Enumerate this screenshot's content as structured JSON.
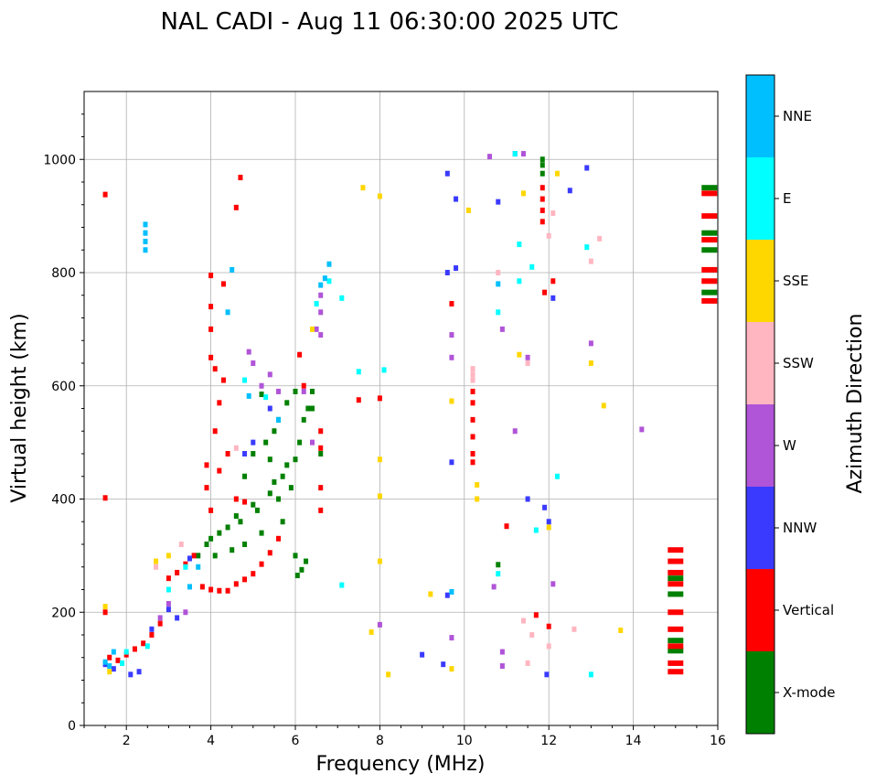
{
  "chart_data": {
    "type": "scatter",
    "title": "NAL CADI - Aug 11 06:30:00 2025 UTC",
    "xlabel": "Frequency (MHz)",
    "ylabel": "Virtual height (km)",
    "xlim": [
      1,
      16
    ],
    "ylim": [
      0,
      1120
    ],
    "xticks": [
      2,
      4,
      6,
      8,
      10,
      12,
      14,
      16
    ],
    "yticks": [
      0,
      200,
      400,
      600,
      800,
      1000
    ],
    "grid": true,
    "colorbar": {
      "label": "Azimuth Direction",
      "entries": [
        {
          "name": "X-mode",
          "color": "#008000"
        },
        {
          "name": "Vertical",
          "color": "#ff0000"
        },
        {
          "name": "NNW",
          "color": "#3a3aff"
        },
        {
          "name": "W",
          "color": "#b054d8"
        },
        {
          "name": "SSW",
          "color": "#ffb6c1"
        },
        {
          "name": "SSE",
          "color": "#ffd700"
        },
        {
          "name": "E",
          "color": "#00ffff"
        },
        {
          "name": "NNE",
          "color": "#00bfff"
        }
      ]
    },
    "series": [
      {
        "name": "X-mode",
        "points": [
          [
            3.7,
            300
          ],
          [
            3.9,
            320
          ],
          [
            4.0,
            330
          ],
          [
            4.1,
            300
          ],
          [
            4.2,
            340
          ],
          [
            4.4,
            350
          ],
          [
            4.5,
            310
          ],
          [
            4.6,
            370
          ],
          [
            4.7,
            360
          ],
          [
            4.8,
            320
          ],
          [
            5.0,
            390
          ],
          [
            5.1,
            380
          ],
          [
            5.2,
            340
          ],
          [
            5.4,
            410
          ],
          [
            5.5,
            430
          ],
          [
            5.6,
            400
          ],
          [
            5.7,
            440
          ],
          [
            5.8,
            460
          ],
          [
            5.9,
            420
          ],
          [
            6.0,
            470
          ],
          [
            6.1,
            500
          ],
          [
            6.2,
            540
          ],
          [
            6.3,
            560
          ],
          [
            5.3,
            500
          ],
          [
            5.5,
            520
          ],
          [
            5.6,
            540
          ],
          [
            5.8,
            570
          ],
          [
            6.0,
            590
          ],
          [
            5.2,
            585
          ],
          [
            5.4,
            470
          ],
          [
            6.05,
            265
          ],
          [
            6.15,
            275
          ],
          [
            6.25,
            290
          ],
          [
            6.0,
            300
          ],
          [
            6.4,
            560
          ],
          [
            6.4,
            590
          ],
          [
            6.6,
            480
          ],
          [
            5.0,
            480
          ],
          [
            4.8,
            440
          ],
          [
            5.7,
            360
          ],
          [
            11.85,
            1000
          ],
          [
            11.85,
            990
          ],
          [
            11.85,
            975
          ],
          [
            15.0,
            260
          ],
          [
            15.0,
            232
          ],
          [
            15.0,
            150
          ],
          [
            15.0,
            132
          ],
          [
            15.8,
            950
          ],
          [
            15.8,
            870
          ],
          [
            15.8,
            765
          ],
          [
            15.8,
            840
          ],
          [
            10.8,
            284
          ]
        ]
      },
      {
        "name": "Vertical",
        "points": [
          [
            1.5,
            200
          ],
          [
            1.5,
            402
          ],
          [
            1.5,
            938
          ],
          [
            1.6,
            120
          ],
          [
            1.8,
            115
          ],
          [
            2.0,
            125
          ],
          [
            2.2,
            135
          ],
          [
            2.4,
            145
          ],
          [
            2.6,
            160
          ],
          [
            2.8,
            180
          ],
          [
            3.0,
            260
          ],
          [
            3.2,
            270
          ],
          [
            3.4,
            285
          ],
          [
            3.6,
            300
          ],
          [
            3.8,
            245
          ],
          [
            4.0,
            240
          ],
          [
            4.2,
            238
          ],
          [
            4.4,
            238
          ],
          [
            4.6,
            250
          ],
          [
            4.8,
            258
          ],
          [
            5.0,
            268
          ],
          [
            5.2,
            285
          ],
          [
            5.4,
            305
          ],
          [
            5.6,
            330
          ],
          [
            3.9,
            420
          ],
          [
            3.9,
            460
          ],
          [
            4.1,
            520
          ],
          [
            4.2,
            570
          ],
          [
            4.3,
            610
          ],
          [
            4.0,
            650
          ],
          [
            4.0,
            700
          ],
          [
            4.0,
            740
          ],
          [
            4.0,
            795
          ],
          [
            4.3,
            780
          ],
          [
            4.1,
            630
          ],
          [
            4.2,
            450
          ],
          [
            4.4,
            480
          ],
          [
            4.6,
            400
          ],
          [
            4.8,
            395
          ],
          [
            4.0,
            380
          ],
          [
            6.6,
            380
          ],
          [
            6.6,
            420
          ],
          [
            6.6,
            490
          ],
          [
            6.6,
            520
          ],
          [
            6.2,
            600
          ],
          [
            6.1,
            655
          ],
          [
            7.5,
            575
          ],
          [
            8.0,
            578
          ],
          [
            10.2,
            465
          ],
          [
            10.2,
            480
          ],
          [
            10.2,
            510
          ],
          [
            10.2,
            540
          ],
          [
            10.2,
            570
          ],
          [
            10.2,
            590
          ],
          [
            11.85,
            950
          ],
          [
            11.85,
            930
          ],
          [
            11.85,
            910
          ],
          [
            11.85,
            890
          ],
          [
            12.1,
            785
          ],
          [
            11.9,
            765
          ],
          [
            12.0,
            175
          ],
          [
            11.7,
            195
          ],
          [
            11.0,
            352
          ],
          [
            15.0,
            310
          ],
          [
            15.0,
            290
          ],
          [
            15.0,
            270
          ],
          [
            15.0,
            250
          ],
          [
            15.0,
            200
          ],
          [
            15.0,
            170
          ],
          [
            15.0,
            140
          ],
          [
            15.0,
            110
          ],
          [
            15.0,
            95
          ],
          [
            15.8,
            940
          ],
          [
            15.8,
            900
          ],
          [
            15.8,
            858
          ],
          [
            15.8,
            805
          ],
          [
            15.8,
            785
          ],
          [
            15.8,
            750
          ],
          [
            4.6,
            915
          ],
          [
            4.7,
            968
          ],
          [
            9.7,
            745
          ]
        ]
      },
      {
        "name": "NNW",
        "points": [
          [
            1.5,
            108
          ],
          [
            1.7,
            100
          ],
          [
            2.1,
            90
          ],
          [
            2.3,
            95
          ],
          [
            2.6,
            170
          ],
          [
            3.0,
            205
          ],
          [
            3.2,
            190
          ],
          [
            3.5,
            295
          ],
          [
            4.8,
            480
          ],
          [
            5.0,
            500
          ],
          [
            5.4,
            560
          ],
          [
            9.7,
            465
          ],
          [
            9.6,
            230
          ],
          [
            9.0,
            125
          ],
          [
            9.5,
            108
          ],
          [
            9.6,
            975
          ],
          [
            9.8,
            930
          ],
          [
            9.6,
            800
          ],
          [
            9.8,
            808
          ],
          [
            10.8,
            925
          ],
          [
            11.2,
            1010
          ],
          [
            11.5,
            400
          ],
          [
            11.9,
            385
          ],
          [
            12.0,
            360
          ],
          [
            12.1,
            755
          ],
          [
            12.5,
            945
          ],
          [
            12.9,
            985
          ],
          [
            11.95,
            90
          ]
        ]
      },
      {
        "name": "W",
        "points": [
          [
            2.8,
            190
          ],
          [
            3.0,
            215
          ],
          [
            3.4,
            200
          ],
          [
            4.9,
            660
          ],
          [
            5.0,
            640
          ],
          [
            5.2,
            600
          ],
          [
            5.4,
            620
          ],
          [
            5.6,
            590
          ],
          [
            6.5,
            700
          ],
          [
            6.6,
            730
          ],
          [
            6.6,
            760
          ],
          [
            6.6,
            690
          ],
          [
            6.4,
            500
          ],
          [
            6.2,
            590
          ],
          [
            9.7,
            690
          ],
          [
            9.7,
            155
          ],
          [
            9.7,
            650
          ],
          [
            10.6,
            1005
          ],
          [
            11.2,
            520
          ],
          [
            10.9,
            700
          ],
          [
            12.1,
            250
          ],
          [
            13.0,
            675
          ],
          [
            14.2,
            523
          ],
          [
            11.4,
            1010
          ],
          [
            10.7,
            245
          ],
          [
            11.5,
            650
          ],
          [
            10.9,
            130
          ],
          [
            10.9,
            105
          ],
          [
            8.0,
            178
          ]
        ]
      },
      {
        "name": "SSW",
        "points": [
          [
            2.7,
            280
          ],
          [
            3.3,
            320
          ],
          [
            4.6,
            490
          ],
          [
            10.2,
            630
          ],
          [
            10.2,
            620
          ],
          [
            10.2,
            610
          ],
          [
            10.8,
            800
          ],
          [
            11.5,
            110
          ],
          [
            12.0,
            865
          ],
          [
            12.1,
            905
          ],
          [
            12.6,
            170
          ],
          [
            13.0,
            820
          ],
          [
            13.2,
            860
          ],
          [
            11.5,
            640
          ],
          [
            12.0,
            140
          ],
          [
            11.6,
            160
          ],
          [
            11.4,
            185
          ]
        ]
      },
      {
        "name": "SSE",
        "points": [
          [
            1.6,
            95
          ],
          [
            1.5,
            210
          ],
          [
            2.7,
            290
          ],
          [
            3.0,
            300
          ],
          [
            6.4,
            700
          ],
          [
            7.6,
            950
          ],
          [
            8.0,
            405
          ],
          [
            8.0,
            470
          ],
          [
            8.0,
            290
          ],
          [
            8.2,
            90
          ],
          [
            9.2,
            232
          ],
          [
            9.7,
            100
          ],
          [
            10.1,
            910
          ],
          [
            10.3,
            400
          ],
          [
            10.3,
            425
          ],
          [
            11.4,
            940
          ],
          [
            11.3,
            655
          ],
          [
            12.0,
            350
          ],
          [
            12.2,
            975
          ],
          [
            13.0,
            640
          ],
          [
            13.3,
            565
          ],
          [
            13.7,
            168
          ],
          [
            8.0,
            935
          ],
          [
            9.7,
            573
          ],
          [
            7.8,
            165
          ]
        ]
      },
      {
        "name": "E",
        "points": [
          [
            1.9,
            110
          ],
          [
            2.0,
            130
          ],
          [
            2.5,
            140
          ],
          [
            3.0,
            240
          ],
          [
            3.4,
            280
          ],
          [
            4.8,
            610
          ],
          [
            5.3,
            580
          ],
          [
            6.5,
            745
          ],
          [
            6.8,
            785
          ],
          [
            7.1,
            755
          ],
          [
            7.5,
            625
          ],
          [
            8.1,
            628
          ],
          [
            7.1,
            248
          ],
          [
            10.8,
            268
          ],
          [
            10.8,
            730
          ],
          [
            11.2,
            1010
          ],
          [
            11.3,
            785
          ],
          [
            11.6,
            810
          ],
          [
            12.9,
            845
          ],
          [
            13.0,
            90
          ],
          [
            12.2,
            440
          ],
          [
            11.7,
            345
          ],
          [
            11.3,
            850
          ]
        ]
      },
      {
        "name": "NNE",
        "points": [
          [
            1.5,
            112
          ],
          [
            1.6,
            105
          ],
          [
            1.7,
            130
          ],
          [
            2.45,
            840
          ],
          [
            2.45,
            855
          ],
          [
            2.45,
            870
          ],
          [
            2.45,
            885
          ],
          [
            3.5,
            245
          ],
          [
            3.7,
            280
          ],
          [
            4.5,
            805
          ],
          [
            4.4,
            730
          ],
          [
            4.9,
            582
          ],
          [
            5.6,
            540
          ],
          [
            6.6,
            778
          ],
          [
            6.7,
            790
          ],
          [
            6.8,
            815
          ],
          [
            10.8,
            780
          ],
          [
            9.7,
            236
          ]
        ]
      }
    ]
  }
}
